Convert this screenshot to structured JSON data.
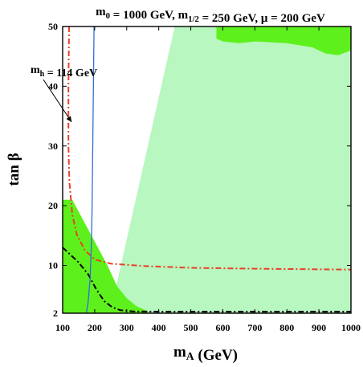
{
  "chart_data": {
    "type": "area",
    "title": {
      "parts": [
        {
          "t": "m"
        },
        {
          "t": "0",
          "sub": true
        },
        {
          "t": " = 1000 GeV, m"
        },
        {
          "t": "1/2",
          "sub": true
        },
        {
          "t": " = 250 GeV, μ = 200 GeV"
        }
      ]
    },
    "xlabel": {
      "main": "m",
      "sub": "A",
      "rest": " (GeV)"
    },
    "ylabel": "tan β",
    "xlim": [
      100,
      1000
    ],
    "ylim": [
      2,
      50
    ],
    "xticks": [
      100,
      200,
      300,
      400,
      500,
      600,
      700,
      800,
      900,
      1000
    ],
    "yticks": [
      2,
      10,
      20,
      30,
      40,
      50
    ],
    "colors": {
      "light_green": "#b8f7c0",
      "bright_green": "#5ef01c",
      "red_dashdot": "#e8402a",
      "black_dashdot": "#000000",
      "blue_line": "#2f6fd6"
    },
    "regions": [
      {
        "id": "light-green-region",
        "color": "light_green",
        "points": [
          [
            258,
            2
          ],
          [
            265,
            6
          ],
          [
            450,
            50
          ],
          [
            1000,
            50
          ],
          [
            1000,
            2
          ]
        ]
      },
      {
        "id": "green-region-lower-left",
        "color": "bright_green",
        "points": [
          [
            100,
            2
          ],
          [
            100,
            21
          ],
          [
            130,
            21
          ],
          [
            155,
            18.5
          ],
          [
            180,
            16
          ],
          [
            205,
            13.5
          ],
          [
            240,
            10
          ],
          [
            270,
            6.5
          ],
          [
            300,
            4.5
          ],
          [
            330,
            3.2
          ],
          [
            350,
            2.7
          ],
          [
            365,
            2.4
          ],
          [
            365,
            2
          ]
        ]
      },
      {
        "id": "green-region-upper-right",
        "color": "bright_green",
        "points": [
          [
            580,
            50
          ],
          [
            580,
            48
          ],
          [
            600,
            47.5
          ],
          [
            650,
            47.2
          ],
          [
            700,
            47.5
          ],
          [
            800,
            47.2
          ],
          [
            880,
            46.5
          ],
          [
            920,
            45.5
          ],
          [
            960,
            45.2
          ],
          [
            1000,
            46
          ],
          [
            1000,
            50
          ]
        ]
      }
    ],
    "series": [
      {
        "id": "red-dashdot-curve",
        "color": "red_dashdot",
        "style": "dashdot",
        "points": [
          [
            120,
            50
          ],
          [
            118,
            40
          ],
          [
            118,
            30
          ],
          [
            121,
            24
          ],
          [
            130,
            18.5
          ],
          [
            145,
            15
          ],
          [
            170,
            12.5
          ],
          [
            200,
            11
          ],
          [
            250,
            10.3
          ],
          [
            350,
            9.9
          ],
          [
            500,
            9.6
          ],
          [
            700,
            9.45
          ],
          [
            1000,
            9.3
          ]
        ]
      },
      {
        "id": "black-dashdot-curve",
        "color": "black_dashdot",
        "style": "dashdot",
        "points": [
          [
            100,
            13
          ],
          [
            120,
            12
          ],
          [
            150,
            10.5
          ],
          [
            180,
            8.5
          ],
          [
            205,
            6
          ],
          [
            230,
            4
          ],
          [
            255,
            3
          ],
          [
            280,
            2.5
          ],
          [
            320,
            2.3
          ],
          [
            400,
            2.25
          ],
          [
            600,
            2.25
          ],
          [
            1000,
            2.25
          ]
        ]
      },
      {
        "id": "blue-higgs-contour",
        "color": "blue_line",
        "style": "solid",
        "points": [
          [
            174,
            2
          ],
          [
            180,
            4
          ],
          [
            186,
            8
          ],
          [
            190,
            14
          ],
          [
            192,
            20
          ],
          [
            194,
            30
          ],
          [
            196,
            40
          ],
          [
            198,
            50
          ]
        ]
      }
    ],
    "annotations": [
      {
        "text_main": "m",
        "text_sub": "h",
        "text_rest": " = 114 GeV",
        "x": 150,
        "y": 43,
        "arrow_to": [
          128,
          34
        ]
      }
    ]
  }
}
